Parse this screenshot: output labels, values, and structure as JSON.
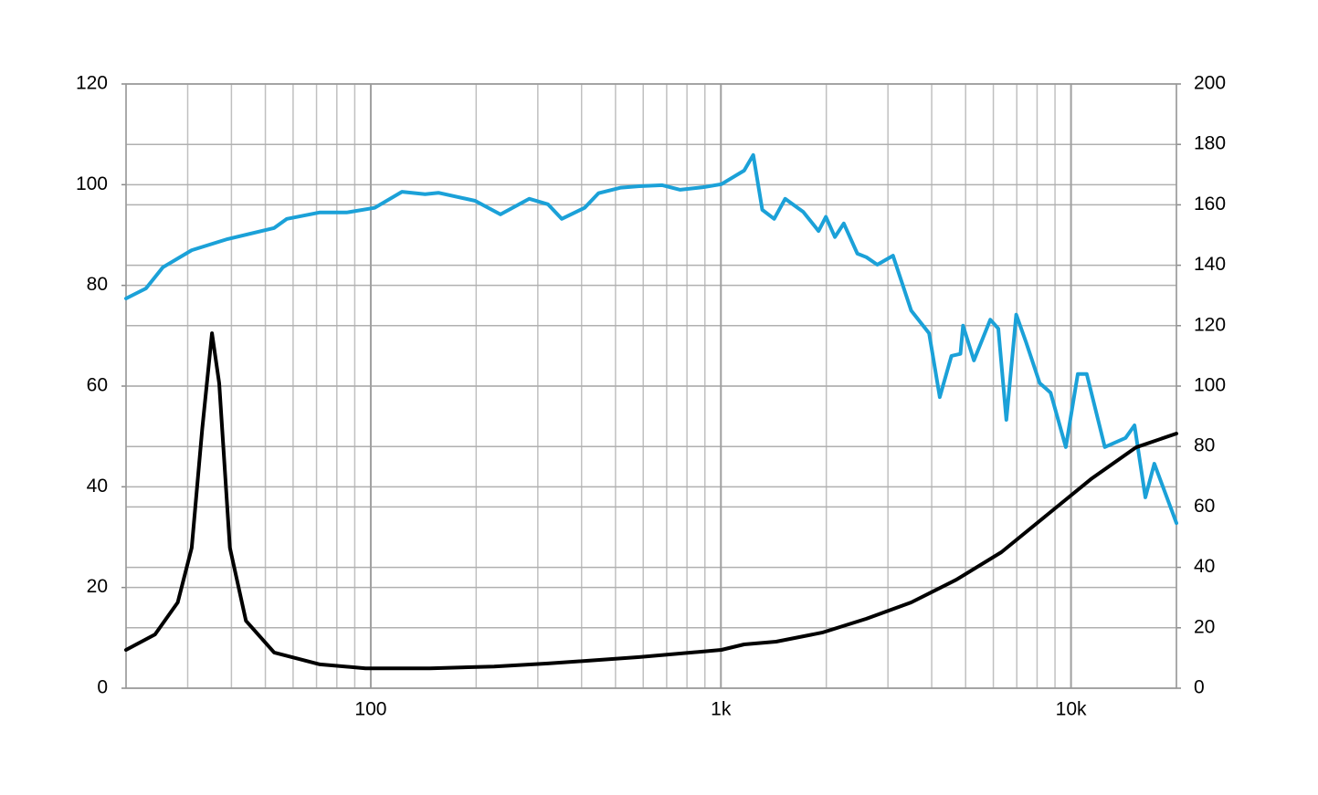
{
  "chart_data": {
    "type": "line",
    "xlim": [
      20,
      20000
    ],
    "xlog": true,
    "xticks": [
      {
        "value": 100,
        "label": "100"
      },
      {
        "value": 1000,
        "label": "1k"
      },
      {
        "value": 10000,
        "label": "10k"
      }
    ],
    "ylim": [
      0,
      120
    ],
    "yticks": [
      0,
      20,
      40,
      60,
      80,
      100,
      120
    ],
    "y2lim": [
      0,
      200
    ],
    "y2ticks": [
      0,
      20,
      40,
      60,
      80,
      100,
      120,
      140,
      160,
      180,
      200
    ],
    "grid": true,
    "series": [
      {
        "color": "#1ba1d8",
        "x": [
          20,
          22.8,
          25.5,
          30.8,
          39,
          53,
          57.6,
          71.6,
          85.7,
          102.6,
          122.8,
          142.9,
          156,
          198.7,
          234.6,
          283.7,
          320.6,
          351,
          408,
          447,
          518,
          585,
          680,
          765,
          889,
          1003,
          1165,
          1237,
          1313,
          1420,
          1526,
          1718,
          1901,
          1994,
          2117,
          2244,
          2454,
          2604,
          2797,
          3102,
          3495,
          3933,
          4217,
          4556,
          4831,
          4917,
          5281,
          5879,
          6198,
          6536,
          6974,
          7440,
          8138,
          8740,
          9665,
          10456,
          11091,
          12490,
          14310,
          15178,
          16304,
          17292,
          20000
        ],
        "values": [
          77.4,
          79.4,
          83.6,
          87,
          89.2,
          91.4,
          93.2,
          94.5,
          94.5,
          95.4,
          98.6,
          98.1,
          98.4,
          96.8,
          94.1,
          97.2,
          96.1,
          93.2,
          95.4,
          98.3,
          99.4,
          99.7,
          99.9,
          99,
          99.5,
          100.1,
          102.8,
          105.9,
          95,
          93.2,
          97.2,
          94.6,
          90.8,
          93.6,
          89.6,
          92.3,
          86.3,
          85.6,
          84.1,
          85.9,
          75,
          70.5,
          57.8,
          66,
          66.4,
          72,
          65.1,
          73.2,
          71.4,
          53.3,
          74.2,
          68.7,
          60.6,
          58.7,
          47.9,
          62.4,
          62.4,
          47.9,
          49.7,
          52.2,
          37.9,
          44.6,
          32.8
        ]
      },
      {
        "color": "#000000",
        "axis": "y2",
        "x": [
          20,
          24.2,
          28.1,
          30.8,
          33,
          35.2,
          36.9,
          39.6,
          44,
          53,
          71.6,
          96.6,
          147.5,
          224.9,
          320.6,
          585,
          1003,
          1165,
          1438,
          1945,
          2604,
          3495,
          4700,
          6325,
          8487,
          11400,
          15320,
          20000
        ],
        "values": [
          12.7,
          17.8,
          28.4,
          46.5,
          85.8,
          117.5,
          100.9,
          46.5,
          22.3,
          11.8,
          7.9,
          6.6,
          6.6,
          7.2,
          8.2,
          10.3,
          12.7,
          14.5,
          15.4,
          18.4,
          23,
          28.4,
          35.9,
          45,
          57.1,
          69.2,
          79.7,
          84.3
        ]
      }
    ]
  }
}
